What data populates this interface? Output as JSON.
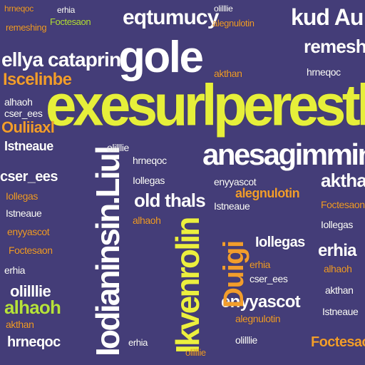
{
  "colors": {
    "background": "#443d78",
    "yellow": "#e9f03c",
    "white": "#ffffff",
    "orange": "#f0a030",
    "green": "#b5e23c",
    "pink": "#f04a8a"
  },
  "words": [
    "exesurlperestl",
    "gole",
    "eqtumucy",
    "kud Au",
    "ellya cataprin",
    "remeshing",
    "anesagimmin",
    "Iscelinbe",
    "Ouliiaxl",
    "Iodianinsin.Liul",
    "Ikvenrolin",
    "old thals",
    "enyyascot",
    "Duigi",
    "Istneaue",
    "cser_ees",
    "akthan",
    "erhia",
    "olilllie",
    "Iollegas",
    "alhaoh",
    "Foctesaon",
    "hrneqoc",
    "alegnulotin"
  ]
}
